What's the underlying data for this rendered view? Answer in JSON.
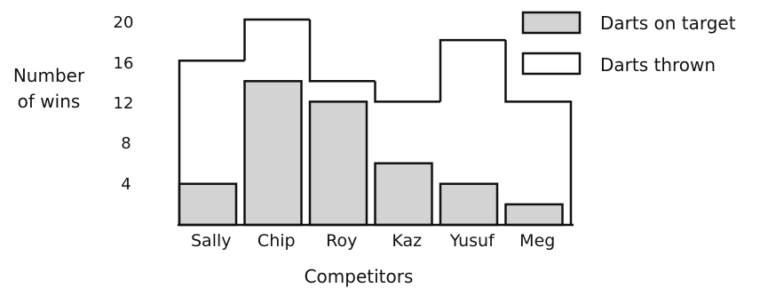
{
  "chart_data": {
    "type": "bar",
    "title": "",
    "xlabel": "Competitors",
    "ylabel": "Number of wins",
    "ylabel_lines": [
      "Number",
      "of wins"
    ],
    "categories": [
      "Sally",
      "Chip",
      "Roy",
      "Kaz",
      "Yusuf",
      "Meg"
    ],
    "series": [
      {
        "name": "Darts on target",
        "values": [
          4,
          14,
          12,
          6,
          4,
          2
        ],
        "color": "#d3d3d3"
      },
      {
        "name": "Darts thrown",
        "values": [
          16,
          20,
          14,
          12,
          18,
          12
        ],
        "color": "#ffffff"
      }
    ],
    "yticks": [
      "4",
      "8",
      "12",
      "16",
      "20"
    ],
    "ylim": [
      0,
      20
    ],
    "grid": false,
    "legend": "top-right",
    "stroke_color": "#111111"
  }
}
